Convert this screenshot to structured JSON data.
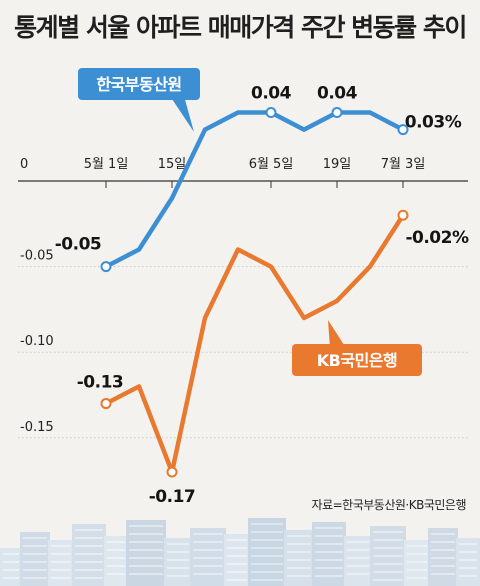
{
  "title": "통계별 서울 아파트 매매가격 주간 변동률 추이",
  "source": "자료=한국부동산원·KB국민은행",
  "colors": {
    "reb": "#3d8fd4",
    "kb": "#e8792f",
    "background": "#f4f2ef",
    "grid": "#c9c9c9"
  },
  "chart_data": {
    "type": "line",
    "title": "통계별 서울 아파트 매매가격 주간 변동률 추이",
    "xlabel": "",
    "ylabel": "",
    "ylim": [
      -0.17,
      0.04
    ],
    "y_ticks": [
      {
        "value": 0,
        "label": "0"
      },
      {
        "value": -0.05,
        "label": "-0.05"
      },
      {
        "value": -0.1,
        "label": "-0.10"
      },
      {
        "value": -0.15,
        "label": "-0.15"
      }
    ],
    "x_ticks": [
      {
        "index": 0,
        "label": "5월 1일"
      },
      {
        "index": 2,
        "label": "15일"
      },
      {
        "index": 5,
        "label": "6월 5일"
      },
      {
        "index": 7,
        "label": "19일"
      },
      {
        "index": 9,
        "label": "7월 3일"
      }
    ],
    "grid": true,
    "series": [
      {
        "name": "한국부동산원",
        "color": "#3d8fd4",
        "values": [
          -0.05,
          -0.04,
          -0.01,
          0.03,
          0.04,
          0.04,
          0.03,
          0.04,
          0.04,
          0.03
        ],
        "markers": [
          0,
          5,
          7,
          9
        ],
        "labels": [
          {
            "index": 0,
            "text": "-0.05"
          },
          {
            "index": 5,
            "text": "0.04"
          },
          {
            "index": 7,
            "text": "0.04"
          },
          {
            "index": 9,
            "text": "0.03%"
          }
        ]
      },
      {
        "name": "KB국민은행",
        "color": "#e8792f",
        "values": [
          -0.13,
          -0.12,
          -0.17,
          -0.08,
          -0.04,
          -0.05,
          -0.08,
          -0.07,
          -0.05,
          -0.02
        ],
        "markers": [
          0,
          2,
          9
        ],
        "labels": [
          {
            "index": 0,
            "text": "-0.13"
          },
          {
            "index": 2,
            "text": "-0.17"
          },
          {
            "index": 9,
            "text": "-0.02%"
          }
        ]
      }
    ]
  }
}
